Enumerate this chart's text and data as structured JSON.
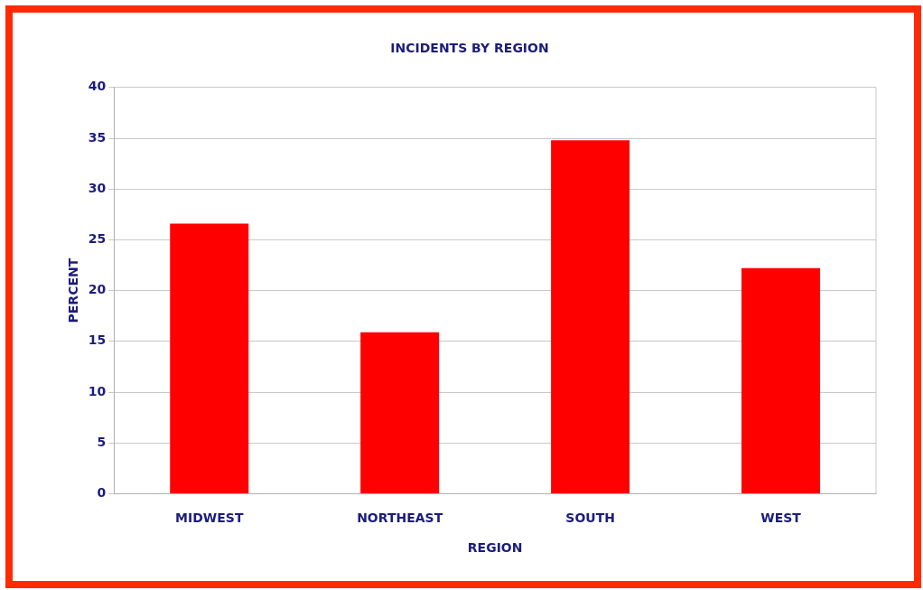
{
  "chart_data": {
    "type": "bar",
    "title": "INCIDENTS BY REGION",
    "xlabel": "REGION",
    "ylabel": "PERCENT",
    "categories": [
      "MIDWEST",
      "NORTHEAST",
      "SOUTH",
      "WEST"
    ],
    "values": [
      26.6,
      15.9,
      34.8,
      22.2
    ],
    "color": "#ff0000",
    "ylim": [
      0,
      40
    ],
    "yticks": [
      0,
      5,
      10,
      15,
      20,
      25,
      30,
      35,
      40
    ],
    "grid": "y",
    "legend": false
  }
}
